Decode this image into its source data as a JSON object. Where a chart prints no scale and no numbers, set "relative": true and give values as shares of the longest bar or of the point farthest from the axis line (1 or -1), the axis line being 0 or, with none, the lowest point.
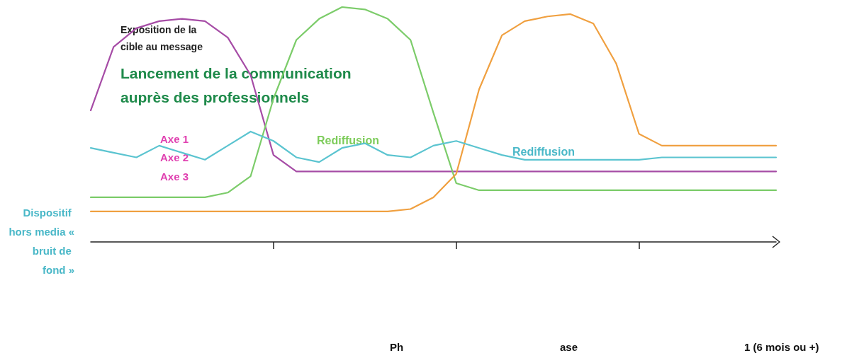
{
  "chart_data": {
    "type": "line",
    "relative": true,
    "categories": [
      null,
      null,
      null,
      null,
      null,
      null,
      null,
      null,
      null,
      null,
      null,
      null,
      null,
      null,
      null,
      null,
      null,
      null,
      null,
      null,
      null,
      null,
      null,
      null,
      null,
      null,
      null,
      null,
      null,
      null,
      null
    ],
    "grid": false,
    "marker": "none",
    "line_style": "solid",
    "series": [
      {
        "color": "#a64ca6",
        "values": [
          0.56,
          0.83,
          0.91,
          0.94,
          0.95,
          0.94,
          0.87,
          0.71,
          0.37,
          0.3,
          0.3,
          0.3,
          0.3,
          0.3,
          0.3,
          0.3,
          0.3,
          0.3,
          0.3,
          0.3,
          0.3,
          0.3,
          0.3,
          0.3,
          0.3,
          0.3,
          0.3,
          0.3,
          0.3,
          0.3,
          0.3
        ]
      },
      {
        "color": "#7ccc6a",
        "values": [
          0.19,
          0.19,
          0.19,
          0.19,
          0.19,
          0.19,
          0.21,
          0.28,
          0.61,
          0.86,
          0.95,
          1.0,
          0.99,
          0.95,
          0.86,
          0.55,
          0.25,
          0.22,
          0.22,
          0.22,
          0.22,
          0.22,
          0.22,
          0.22,
          0.22,
          0.22,
          0.22,
          0.22,
          0.22,
          0.22,
          0.22
        ]
      },
      {
        "color": "#f0a040",
        "values": [
          0.13,
          0.13,
          0.13,
          0.13,
          0.13,
          0.13,
          0.13,
          0.13,
          0.13,
          0.13,
          0.13,
          0.13,
          0.13,
          0.13,
          0.14,
          0.19,
          0.29,
          0.65,
          0.88,
          0.94,
          0.96,
          0.97,
          0.93,
          0.76,
          0.46,
          0.41,
          0.41,
          0.41,
          0.41,
          0.41,
          0.41
        ]
      },
      {
        "color": "#5bc4d0",
        "values": [
          0.4,
          0.38,
          0.36,
          0.41,
          0.38,
          0.35,
          0.41,
          0.47,
          0.43,
          0.36,
          0.34,
          0.4,
          0.42,
          0.37,
          0.36,
          0.41,
          0.43,
          0.4,
          0.37,
          0.35,
          0.35,
          0.35,
          0.35,
          0.35,
          0.35,
          0.36,
          0.36,
          0.36,
          0.36,
          0.36,
          0.36
        ]
      }
    ],
    "annotations": [
      "Exposition de la cible au message",
      "Lancement de la communication auprès des professionnels",
      "Axe 1",
      "Axe 2",
      "Axe 3",
      "Rediffusion",
      "Rediffusion",
      "Dispositif hors media « bruit de fond »",
      "Ph",
      "ase",
      "1 (6 mois ou +)"
    ]
  }
}
